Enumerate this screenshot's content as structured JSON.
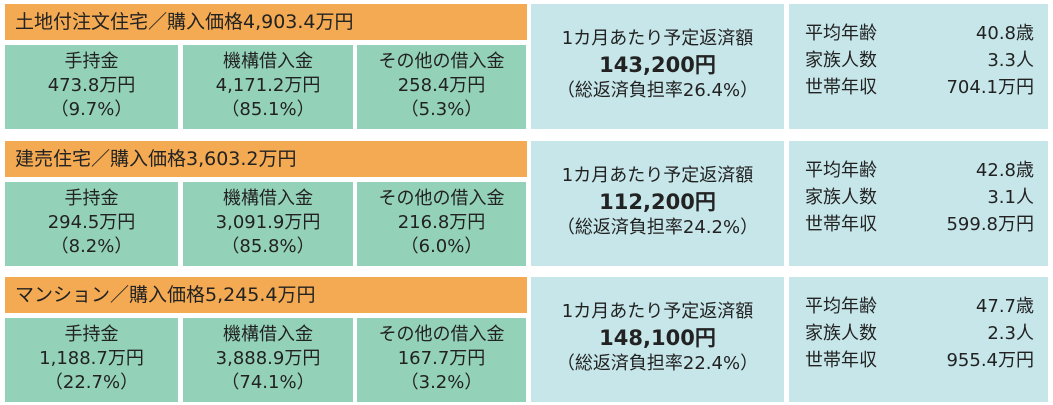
{
  "sections": [
    {
      "title": "土地付注文住宅／購入価格4,903.4万円",
      "cells": [
        {
          "label": "手持金",
          "amount": "473.8万円",
          "share": "（9.7%）"
        },
        {
          "label": "機構借入金",
          "amount": "4,171.2万円",
          "share": "（85.1%）"
        },
        {
          "label": "その他の借入金",
          "amount": "258.4万円",
          "share": "（5.3%）"
        }
      ],
      "payment": {
        "label": "1カ月あたり予定返済額",
        "amount": "143,200円",
        "ratio": "（総返済負担率26.4%）"
      },
      "stats": [
        {
          "label": "平均年齢",
          "value": "40.8歳"
        },
        {
          "label": "家族人数",
          "value": "3.3人"
        },
        {
          "label": "世帯年収",
          "value": "704.1万円"
        }
      ]
    },
    {
      "title": "建売住宅／購入価格3,603.2万円",
      "cells": [
        {
          "label": "手持金",
          "amount": "294.5万円",
          "share": "（8.2%）"
        },
        {
          "label": "機構借入金",
          "amount": "3,091.9万円",
          "share": "（85.8%）"
        },
        {
          "label": "その他の借入金",
          "amount": "216.8万円",
          "share": "（6.0%）"
        }
      ],
      "payment": {
        "label": "1カ月あたり予定返済額",
        "amount": "112,200円",
        "ratio": "（総返済負担率24.2%）"
      },
      "stats": [
        {
          "label": "平均年齢",
          "value": "42.8歳"
        },
        {
          "label": "家族人数",
          "value": "3.1人"
        },
        {
          "label": "世帯年収",
          "value": "599.8万円"
        }
      ]
    },
    {
      "title": "マンション／購入価格5,245.4万円",
      "cells": [
        {
          "label": "手持金",
          "amount": "1,188.7万円",
          "share": "（22.7%）"
        },
        {
          "label": "機構借入金",
          "amount": "3,888.9万円",
          "share": "（74.1%）"
        },
        {
          "label": "その他の借入金",
          "amount": "167.7万円",
          "share": "（3.2%）"
        }
      ],
      "payment": {
        "label": "1カ月あたり予定返済額",
        "amount": "148,100円",
        "ratio": "（総返済負担率22.4%）"
      },
      "stats": [
        {
          "label": "平均年齢",
          "value": "47.7歳"
        },
        {
          "label": "家族人数",
          "value": "2.3人"
        },
        {
          "label": "世帯年収",
          "value": "955.4万円"
        }
      ]
    }
  ]
}
